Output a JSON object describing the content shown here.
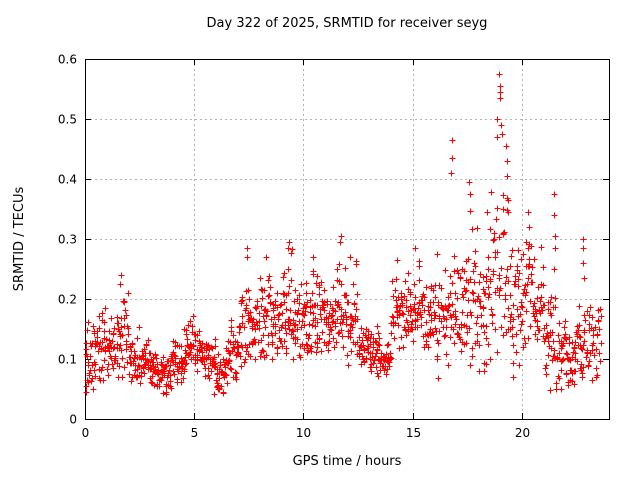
{
  "chart_data": {
    "type": "scatter",
    "title": "Day 322 of 2025, SRMTID for receiver seyg",
    "xlabel": "GPS time / hours",
    "ylabel": "SRMTID / TECUs",
    "xlim": [
      0,
      24
    ],
    "ylim": [
      0,
      0.6
    ],
    "xticks": [
      0,
      5,
      10,
      15,
      20
    ],
    "xtick_labels": [
      "0",
      "5",
      "10",
      "15",
      "20"
    ],
    "yticks": [
      0,
      0.1,
      0.2,
      0.3,
      0.4,
      0.5,
      0.6
    ],
    "ytick_labels": [
      "0",
      "0.1",
      "0.2",
      "0.3",
      "0.4",
      "0.5",
      "0.6"
    ],
    "grid": {
      "visible": true,
      "style": "dashed",
      "color": "#b3b3b3"
    },
    "frame_color": "#000000",
    "marker": {
      "shape": "plus",
      "color": "#ff0000",
      "size": 7
    },
    "legend": "none",
    "series": [
      {
        "name": "SRMTID vs GPS time",
        "envelope_bins_format": "[start_hour, y_low, y_high, n_points, optional_bin_width_hours(default 0.5)]",
        "envelope_bins": [
          [
            0,
            0.045,
            0.19,
            32
          ],
          [
            0.5,
            0.05,
            0.215,
            32
          ],
          [
            1,
            0.07,
            0.18,
            32
          ],
          [
            1.5,
            0.07,
            0.235,
            32
          ],
          [
            2,
            0.05,
            0.16,
            32
          ],
          [
            2.5,
            0.06,
            0.14,
            32
          ],
          [
            3,
            0.05,
            0.13,
            32
          ],
          [
            3.5,
            0.04,
            0.125,
            32
          ],
          [
            4,
            0.06,
            0.16,
            32
          ],
          [
            4.5,
            0.08,
            0.175,
            32
          ],
          [
            5,
            0.08,
            0.16,
            32
          ],
          [
            5.5,
            0.06,
            0.145,
            32
          ],
          [
            6,
            0.04,
            0.125,
            32
          ],
          [
            6.5,
            0.06,
            0.18,
            32
          ],
          [
            7,
            0.08,
            0.26,
            32
          ],
          [
            7.5,
            0.1,
            0.25,
            32
          ],
          [
            8,
            0.1,
            0.27,
            32
          ],
          [
            8.5,
            0.1,
            0.25,
            32
          ],
          [
            9,
            0.11,
            0.285,
            32
          ],
          [
            9.5,
            0.1,
            0.24,
            32
          ],
          [
            10,
            0.1,
            0.295,
            32
          ],
          [
            10.5,
            0.11,
            0.26,
            32
          ],
          [
            11,
            0.1,
            0.24,
            32
          ],
          [
            11.5,
            0.11,
            0.3,
            32
          ],
          [
            12,
            0.09,
            0.27,
            30
          ],
          [
            12.5,
            0.08,
            0.18,
            30
          ],
          [
            13,
            0.075,
            0.16,
            30
          ],
          [
            13.5,
            0.07,
            0.14,
            30
          ],
          [
            14,
            0.1,
            0.26,
            30
          ],
          [
            14.5,
            0.12,
            0.25,
            30
          ],
          [
            15,
            0.13,
            0.28,
            30
          ],
          [
            15.5,
            0.12,
            0.25,
            30
          ],
          [
            16,
            0.1,
            0.27,
            30
          ],
          [
            16.5,
            0.08,
            0.3,
            30
          ],
          [
            17,
            0.1,
            0.32,
            30
          ],
          [
            17.5,
            0.09,
            0.38,
            30
          ],
          [
            18,
            0.08,
            0.32,
            30
          ],
          [
            18.5,
            0.1,
            0.42,
            30
          ],
          [
            19,
            0.12,
            0.45,
            30
          ],
          [
            19.5,
            0.07,
            0.32,
            30
          ],
          [
            20,
            0.12,
            0.35,
            30
          ],
          [
            20.5,
            0.1,
            0.3,
            30
          ],
          [
            21,
            0.06,
            0.22,
            30
          ],
          [
            21.5,
            0.05,
            0.22,
            30
          ],
          [
            22,
            0.05,
            0.18,
            30
          ],
          [
            22.5,
            0.06,
            0.23,
            30
          ],
          [
            23,
            0.06,
            0.2,
            24
          ],
          [
            23.5,
            0.08,
            0.22,
            8,
            0.15
          ]
        ],
        "outlier_points": [
          [
            1.62,
            0.225
          ],
          [
            1.65,
            0.24
          ],
          [
            7.4,
            0.27
          ],
          [
            7.43,
            0.285
          ],
          [
            8.3,
            0.27
          ],
          [
            9.3,
            0.285
          ],
          [
            9.33,
            0.295
          ],
          [
            10.45,
            0.27
          ],
          [
            11.7,
            0.295
          ],
          [
            11.72,
            0.305
          ],
          [
            12.15,
            0.27
          ],
          [
            14.3,
            0.265
          ],
          [
            15.1,
            0.285
          ],
          [
            16.1,
            0.275
          ],
          [
            16.78,
            0.41
          ],
          [
            16.8,
            0.435
          ],
          [
            16.82,
            0.465
          ],
          [
            17.6,
            0.395
          ],
          [
            17.63,
            0.375
          ],
          [
            18.4,
            0.345
          ],
          [
            18.85,
            0.5
          ],
          [
            18.88,
            0.47
          ],
          [
            18.98,
            0.575
          ],
          [
            19.0,
            0.555
          ],
          [
            19.0,
            0.545
          ],
          [
            19.02,
            0.535
          ],
          [
            19.05,
            0.49
          ],
          [
            19.08,
            0.475
          ],
          [
            19.3,
            0.455
          ],
          [
            19.33,
            0.43
          ],
          [
            19.35,
            0.405
          ],
          [
            20.3,
            0.345
          ],
          [
            20.33,
            0.32
          ],
          [
            21.5,
            0.375
          ],
          [
            21.5,
            0.34
          ],
          [
            21.52,
            0.305
          ],
          [
            21.52,
            0.285
          ],
          [
            21.5,
            0.25
          ],
          [
            22.8,
            0.3
          ],
          [
            22.8,
            0.285
          ],
          [
            22.82,
            0.26
          ],
          [
            22.85,
            0.235
          ],
          [
            3.7,
            0.045
          ],
          [
            5.9,
            0.042
          ],
          [
            6.1,
            0.05
          ],
          [
            13.4,
            0.072
          ],
          [
            13.8,
            0.075
          ],
          [
            16.15,
            0.068
          ],
          [
            19.6,
            0.07
          ],
          [
            21.3,
            0.048
          ],
          [
            21.8,
            0.05
          ],
          [
            23.2,
            0.065
          ]
        ]
      }
    ]
  }
}
